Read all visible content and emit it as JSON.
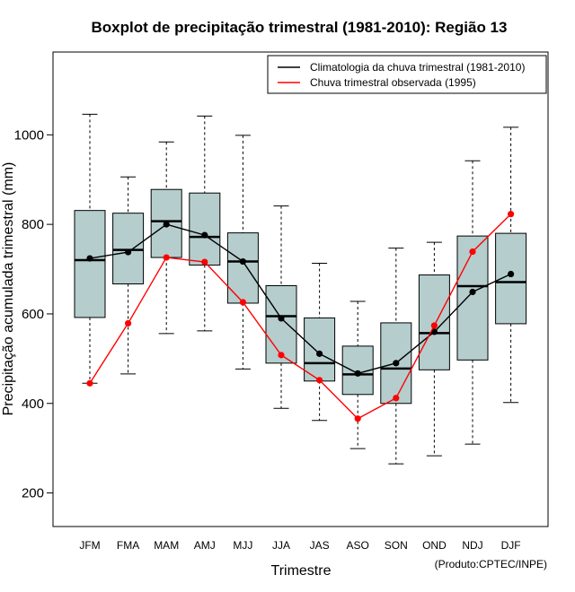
{
  "chart_data": {
    "type": "boxplot",
    "title": "Boxplot de precipitação trimestral (1981-2010): Região 13",
    "xlabel": "Trimestre",
    "ylabel": "Precipitação acumulada trimestral (mm)",
    "credit": "(Produto:CPTEC/INPE)",
    "ylim": [
      125,
      1185
    ],
    "yticks": [
      200,
      400,
      600,
      800,
      1000
    ],
    "categories": [
      "JFM",
      "FMA",
      "MAM",
      "AMJ",
      "MJJ",
      "JJA",
      "JAS",
      "ASO",
      "SON",
      "OND",
      "NDJ",
      "DJF"
    ],
    "boxes": [
      {
        "min": 445,
        "q1": 592,
        "median": 720,
        "q3": 831,
        "max": 1046
      },
      {
        "min": 466,
        "q1": 667,
        "median": 743,
        "q3": 825,
        "max": 906
      },
      {
        "min": 556,
        "q1": 726,
        "median": 807,
        "q3": 878,
        "max": 984
      },
      {
        "min": 562,
        "q1": 709,
        "median": 772,
        "q3": 870,
        "max": 1042
      },
      {
        "min": 477,
        "q1": 624,
        "median": 717,
        "q3": 781,
        "max": 999
      },
      {
        "min": 389,
        "q1": 490,
        "median": 595,
        "q3": 663,
        "max": 841
      },
      {
        "min": 362,
        "q1": 450,
        "median": 490,
        "q3": 591,
        "max": 713
      },
      {
        "min": 299,
        "q1": 420,
        "median": 465,
        "q3": 528,
        "max": 628
      },
      {
        "min": 265,
        "q1": 400,
        "median": 478,
        "q3": 580,
        "max": 747
      },
      {
        "min": 283,
        "q1": 475,
        "median": 557,
        "q3": 687,
        "max": 760
      },
      {
        "min": 309,
        "q1": 497,
        "median": 662,
        "q3": 774,
        "max": 942
      },
      {
        "min": 402,
        "q1": 578,
        "median": 671,
        "q3": 780,
        "max": 1017
      }
    ],
    "series": [
      {
        "name": "Climatologia da chuva trimestral (1981-2010)",
        "color": "#000000",
        "values": [
          724,
          738,
          800,
          776,
          717,
          590,
          511,
          467,
          490,
          560,
          649,
          689
        ]
      },
      {
        "name": "Chuva trimestral observada (1995)",
        "color": "#ff0000",
        "values": [
          445,
          579,
          726,
          716,
          626,
          508,
          452,
          366,
          412,
          574,
          739,
          823
        ]
      }
    ],
    "box_fill": "#b5cdcd",
    "legend_position": "top-right"
  }
}
